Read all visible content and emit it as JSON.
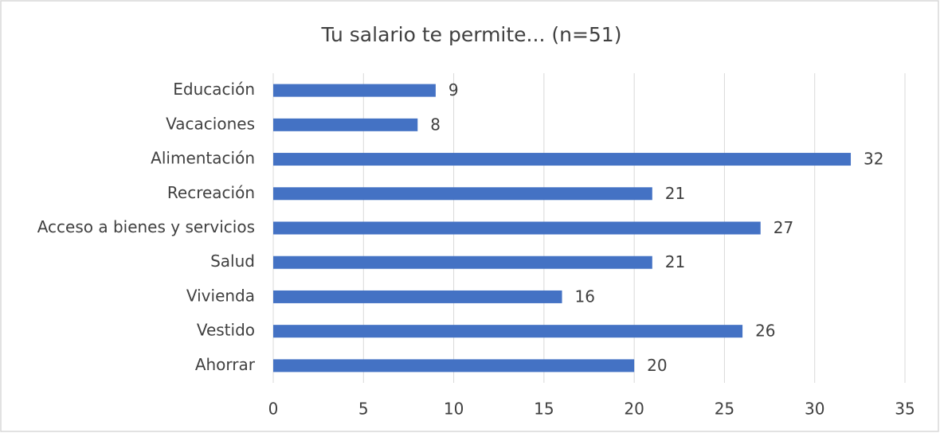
{
  "chart_data": {
    "type": "bar",
    "orientation": "horizontal",
    "title": "Tu salario te permite... (n=51)",
    "categories": [
      "Educación",
      "Vacaciones ",
      "Alimentación",
      "Recreación",
      "Acceso a bienes y servicios",
      "Salud",
      "Vivienda",
      "Vestido",
      "Ahorrar"
    ],
    "values": [
      9,
      8,
      32,
      21,
      27,
      21,
      16,
      26,
      20
    ],
    "color": "#4472c4",
    "xlim": [
      0,
      35
    ],
    "xticks": [
      0,
      5,
      10,
      15,
      20,
      25,
      30,
      35
    ],
    "grid": true
  }
}
